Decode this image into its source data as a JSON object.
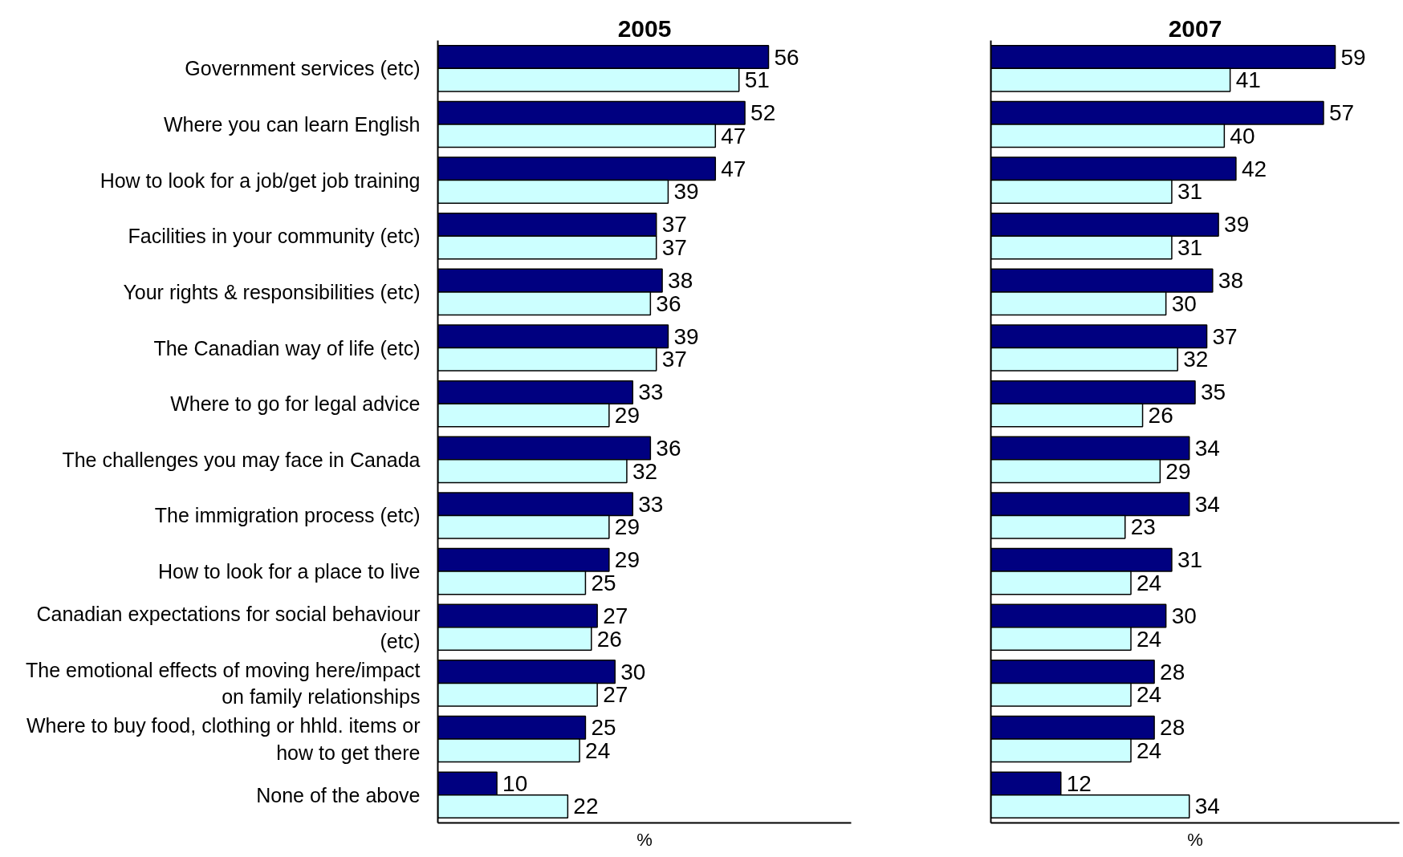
{
  "chart_data": [
    {
      "type": "bar",
      "orientation": "horizontal",
      "title": "2005",
      "xlabel": "%",
      "tick_labels": "y",
      "data_labels": true,
      "xlim": [
        0,
        70
      ],
      "categories": [
        "Government services (etc)",
        "Where you can learn English",
        "How to look for a job/get job training",
        "Facilities in your community (etc)",
        "Your rights & responsibilities (etc)",
        "The Canadian way of life (etc)",
        "Where to go for legal advice",
        "The challenges you may face in Canada",
        "The immigration process (etc)",
        "How to look for a place to live",
        "Canadian expectations for social behaviour (etc)",
        "The emotional effects of moving here/impact on family relationships",
        "Where to buy food, clothing or hhld. items or how to get there",
        "None of the above"
      ],
      "series": [
        {
          "color": "#000080",
          "values": [
            56,
            52,
            47,
            37,
            38,
            39,
            33,
            36,
            33,
            29,
            27,
            30,
            25,
            10
          ]
        },
        {
          "color": "#ccffff",
          "values": [
            51,
            47,
            39,
            37,
            36,
            37,
            29,
            32,
            29,
            25,
            26,
            27,
            24,
            22
          ]
        }
      ]
    },
    {
      "type": "bar",
      "orientation": "horizontal",
      "title": "2007",
      "xlabel": "%",
      "tick_labels": false,
      "data_labels": true,
      "xlim": [
        0,
        70
      ],
      "categories": [
        "Government services (etc)",
        "Where you can learn English",
        "How to look for a job/get job training",
        "Facilities in your community (etc)",
        "Your rights & responsibilities (etc)",
        "The Canadian way of life (etc)",
        "Where to go for legal advice",
        "The challenges you may face in Canada",
        "The immigration process (etc)",
        "How to look for a place to live",
        "Canadian expectations for social behaviour (etc)",
        "The emotional effects of moving here/impact on family relationships",
        "Where to buy food, clothing or hhld. items or how to get there",
        "None of the above"
      ],
      "series": [
        {
          "color": "#000080",
          "values": [
            59,
            57,
            42,
            39,
            38,
            37,
            35,
            34,
            34,
            31,
            30,
            28,
            28,
            12
          ]
        },
        {
          "color": "#ccffff",
          "values": [
            41,
            40,
            31,
            31,
            30,
            32,
            26,
            29,
            23,
            24,
            24,
            24,
            24,
            34
          ]
        }
      ]
    }
  ]
}
